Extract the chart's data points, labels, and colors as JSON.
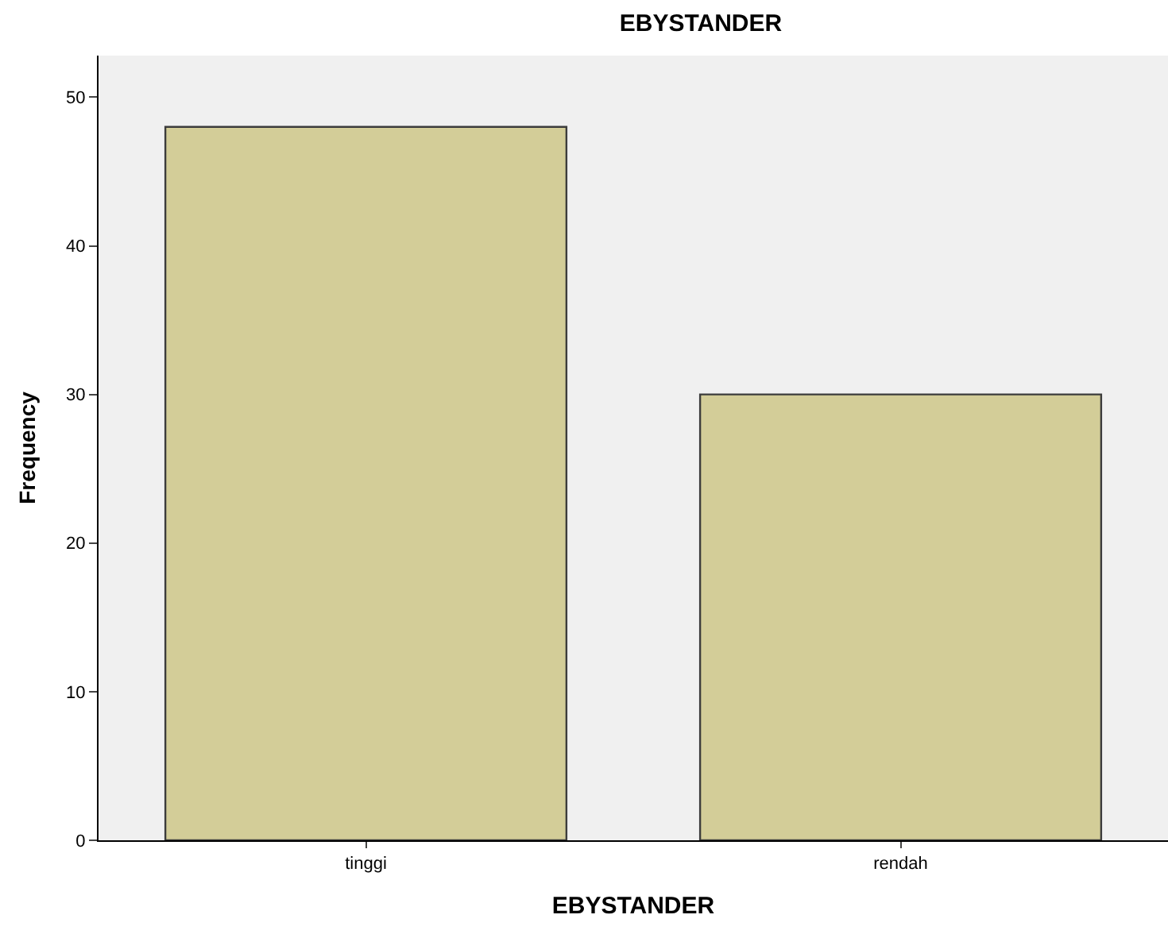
{
  "chart_data": {
    "type": "bar",
    "title": "EBYSTANDER",
    "xlabel": "EBYSTANDER",
    "ylabel": "Frequency",
    "categories": [
      "tinggi",
      "rendah"
    ],
    "values": [
      48,
      30
    ],
    "color": "#d3cd98",
    "ylim": [
      0,
      52.8
    ],
    "yticks": [
      0,
      10,
      20,
      30,
      40,
      50
    ]
  }
}
